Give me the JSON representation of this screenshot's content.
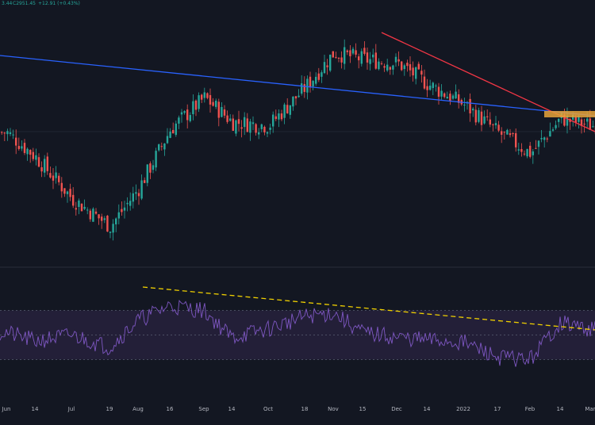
{
  "header": {
    "values": [
      "3.44",
      "C2951.45",
      "+12.91 (+0.43%)"
    ]
  },
  "colors": {
    "background": "#131722",
    "up": "#26a69a",
    "down": "#ef5350",
    "blue_trendline": "#2962ff",
    "red_trendline": "#f23645",
    "rsi_trendline": "#f0d000",
    "rsi_line": "#7e57c2",
    "rsi_band": "#2a2340",
    "resistance_zone": "#e7a33a"
  },
  "chart_data": [
    {
      "type": "candlestick",
      "title": "",
      "x_axis_labels": [
        "Jun",
        "14",
        "Jul",
        "19",
        "Aug",
        "16",
        "Sep",
        "14",
        "Oct",
        "18",
        "Nov",
        "15",
        "Dec",
        "14",
        "2022",
        "17",
        "Feb",
        "14",
        "Mar"
      ],
      "y_range": [
        0,
        100
      ],
      "price_path_approx": [
        {
          "label": "Jun",
          "value": 72
        },
        {
          "label": "14",
          "value": 58
        },
        {
          "label": "Jul",
          "value": 34
        },
        {
          "label": "19",
          "value": 18
        },
        {
          "label": "Aug",
          "value": 40
        },
        {
          "label": "16",
          "value": 74
        },
        {
          "label": "Sep",
          "value": 92
        },
        {
          "label": "14",
          "value": 78
        },
        {
          "label": "Oct",
          "value": 76
        },
        {
          "label": "18",
          "value": 98
        },
        {
          "label": "Nov",
          "value": 118
        },
        {
          "label": "15",
          "value": 114
        },
        {
          "label": "Dec",
          "value": 112
        },
        {
          "label": "14",
          "value": 100
        },
        {
          "label": "2022",
          "value": 88
        },
        {
          "label": "17",
          "value": 72
        },
        {
          "label": "Feb",
          "value": 60
        },
        {
          "label": "14",
          "value": 80
        },
        {
          "label": "Mar",
          "value": 76
        }
      ],
      "annotations": [
        {
          "kind": "trendline",
          "name": "blue descending trendline",
          "color": "#2962ff"
        },
        {
          "kind": "trendline",
          "name": "red descending trendline",
          "color": "#f23645"
        },
        {
          "kind": "zone",
          "name": "resistance zone",
          "color": "#e7a33a"
        }
      ]
    },
    {
      "type": "line",
      "title": "",
      "y_range": [
        0,
        100
      ],
      "levels": [
        70,
        50,
        30
      ],
      "rsi_path_approx": [
        {
          "label": "Jun",
          "value": 52
        },
        {
          "label": "14",
          "value": 45
        },
        {
          "label": "Jul",
          "value": 50
        },
        {
          "label": "19",
          "value": 40
        },
        {
          "label": "Aug",
          "value": 62
        },
        {
          "label": "16",
          "value": 74
        },
        {
          "label": "Sep",
          "value": 70
        },
        {
          "label": "14",
          "value": 48
        },
        {
          "label": "Oct",
          "value": 55
        },
        {
          "label": "18",
          "value": 65
        },
        {
          "label": "Nov",
          "value": 68
        },
        {
          "label": "15",
          "value": 52
        },
        {
          "label": "Dec",
          "value": 48
        },
        {
          "label": "14",
          "value": 46
        },
        {
          "label": "2022",
          "value": 44
        },
        {
          "label": "17",
          "value": 32
        },
        {
          "label": "Feb",
          "value": 30
        },
        {
          "label": "14",
          "value": 60
        },
        {
          "label": "Mar",
          "value": 55
        }
      ],
      "annotations": [
        {
          "kind": "dashed_trendline",
          "name": "RSI descending trendline",
          "color": "#f0d000"
        }
      ]
    }
  ]
}
